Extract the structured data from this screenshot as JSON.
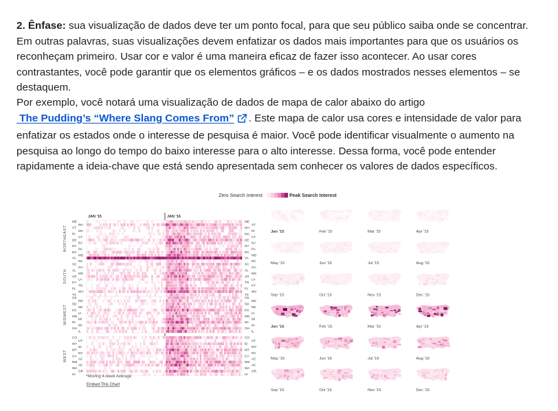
{
  "article": {
    "p1": {
      "lead": "2. Ênfase:",
      "text": " sua visualização de dados deve ter um ponto focal, para que seu público saiba onde se concentrar. Em outras palavras, suas visualizações devem enfatizar os dados mais importantes para que os usuários os reconheçam primeiro. Usar cor e valor é uma maneira eficaz de fazer isso acontecer. Ao usar cores contrastantes, você pode garantir que os elementos gráficos – e os dados mostrados nesses elementos – se destaquem."
    },
    "p2": {
      "before": "Por exemplo, você notará uma visualização de dados de mapa de calor abaixo do artigo",
      "link_text": "The Pudding’s “Where Slang Comes From”",
      "after": ". Este mapa de calor usa cores e intensidade de valor para enfatizar os estados onde o interesse de pesquisa é maior. Você pode identificar visualmente o aumento na pesquisa ao longo do tempo do baixo interesse para o alto interesse. Dessa forma, você pode entender rapidamente a ideia-chave que está sendo apresentada sem conhecer os valores de dados específicos."
    },
    "link_icon": "external-link-icon"
  },
  "figure": {
    "legend": {
      "low": "Zero Search Interest",
      "high": "Peak Search Interest"
    },
    "axis_labels": [
      "JAN '15",
      "JAN '16"
    ],
    "regions": [
      {
        "name": "NORTHEAST",
        "left": [
          "ME",
          "NH",
          "VT",
          "MA",
          "RI",
          "CT",
          "DE",
          "NJ",
          "NY",
          "PA",
          "DC",
          "MD"
        ],
        "right": [
          "ME",
          "VT",
          "NH",
          "RI",
          "MA",
          "CT",
          "DE",
          "NJ",
          "NY",
          "PA",
          "DC",
          "MD"
        ]
      },
      {
        "name": "SOUTH",
        "left": [
          "VA",
          "NC",
          "SC",
          "GA",
          "AL",
          "MS",
          "AR",
          "LA",
          "KY",
          "TN",
          "FL",
          "WV",
          "TX"
        ],
        "right": [
          "VA",
          "NC",
          "SC",
          "GA",
          "AL",
          "MS",
          "AR",
          "LA",
          "TN",
          "KY",
          "FL",
          "WV",
          "TX"
        ]
      },
      {
        "name": "MIDWEST",
        "left": [
          "OK",
          "ND",
          "SD",
          "NE",
          "KS",
          "IA",
          "MN",
          "MI",
          "IN",
          "WI",
          "OH",
          "IL"
        ],
        "right": [
          "OK",
          "ND",
          "SD",
          "NE",
          "KS",
          "IA",
          "MN",
          "MI",
          "WI",
          "IN",
          "OH",
          "IL"
        ]
      },
      {
        "name": "WEST",
        "left": [
          "CO",
          "UT",
          "WY",
          "ID",
          "MT",
          "NV",
          "CA",
          "AZ",
          "NM",
          "AK",
          "WA",
          "OR",
          "HI"
        ],
        "right": [
          "CO",
          "UT",
          "ID",
          "WY",
          "MT",
          "NV",
          "CA",
          "AZ",
          "NM",
          "AK",
          "WA",
          "OR",
          "HI"
        ]
      }
    ],
    "footnote": "*Moving 4-week Average",
    "embed_label": "Embed This Chart",
    "map_labels": [
      "Jan '15",
      "Feb '15",
      "Mar '15",
      "Apr '15",
      "May '15",
      "Jun '15",
      "Jul '15",
      "Aug '15",
      "Sep '15",
      "Oct '15",
      "Nov '15",
      "Dec '15",
      "Jan '16",
      "Feb '16",
      "Mar '16",
      "Apr '16",
      "May '16",
      "Jun '16",
      "Jul '16",
      "Aug '16",
      "Sep '16",
      "Oct '16",
      "Nov '16",
      "Dec '16"
    ],
    "map_intensity": [
      0.05,
      0.05,
      0.08,
      0.08,
      0.12,
      0.15,
      0.15,
      0.15,
      0.25,
      0.18,
      0.2,
      0.22,
      0.85,
      0.7,
      0.75,
      0.8,
      0.6,
      0.55,
      0.5,
      0.5,
      0.45,
      0.42,
      0.4,
      0.38
    ],
    "colors": {
      "low": "#fbe3ec",
      "mid": "#f29cc4",
      "high": "#c0358a",
      "peak": "#6a0f57",
      "link": "#0b57d0"
    }
  }
}
